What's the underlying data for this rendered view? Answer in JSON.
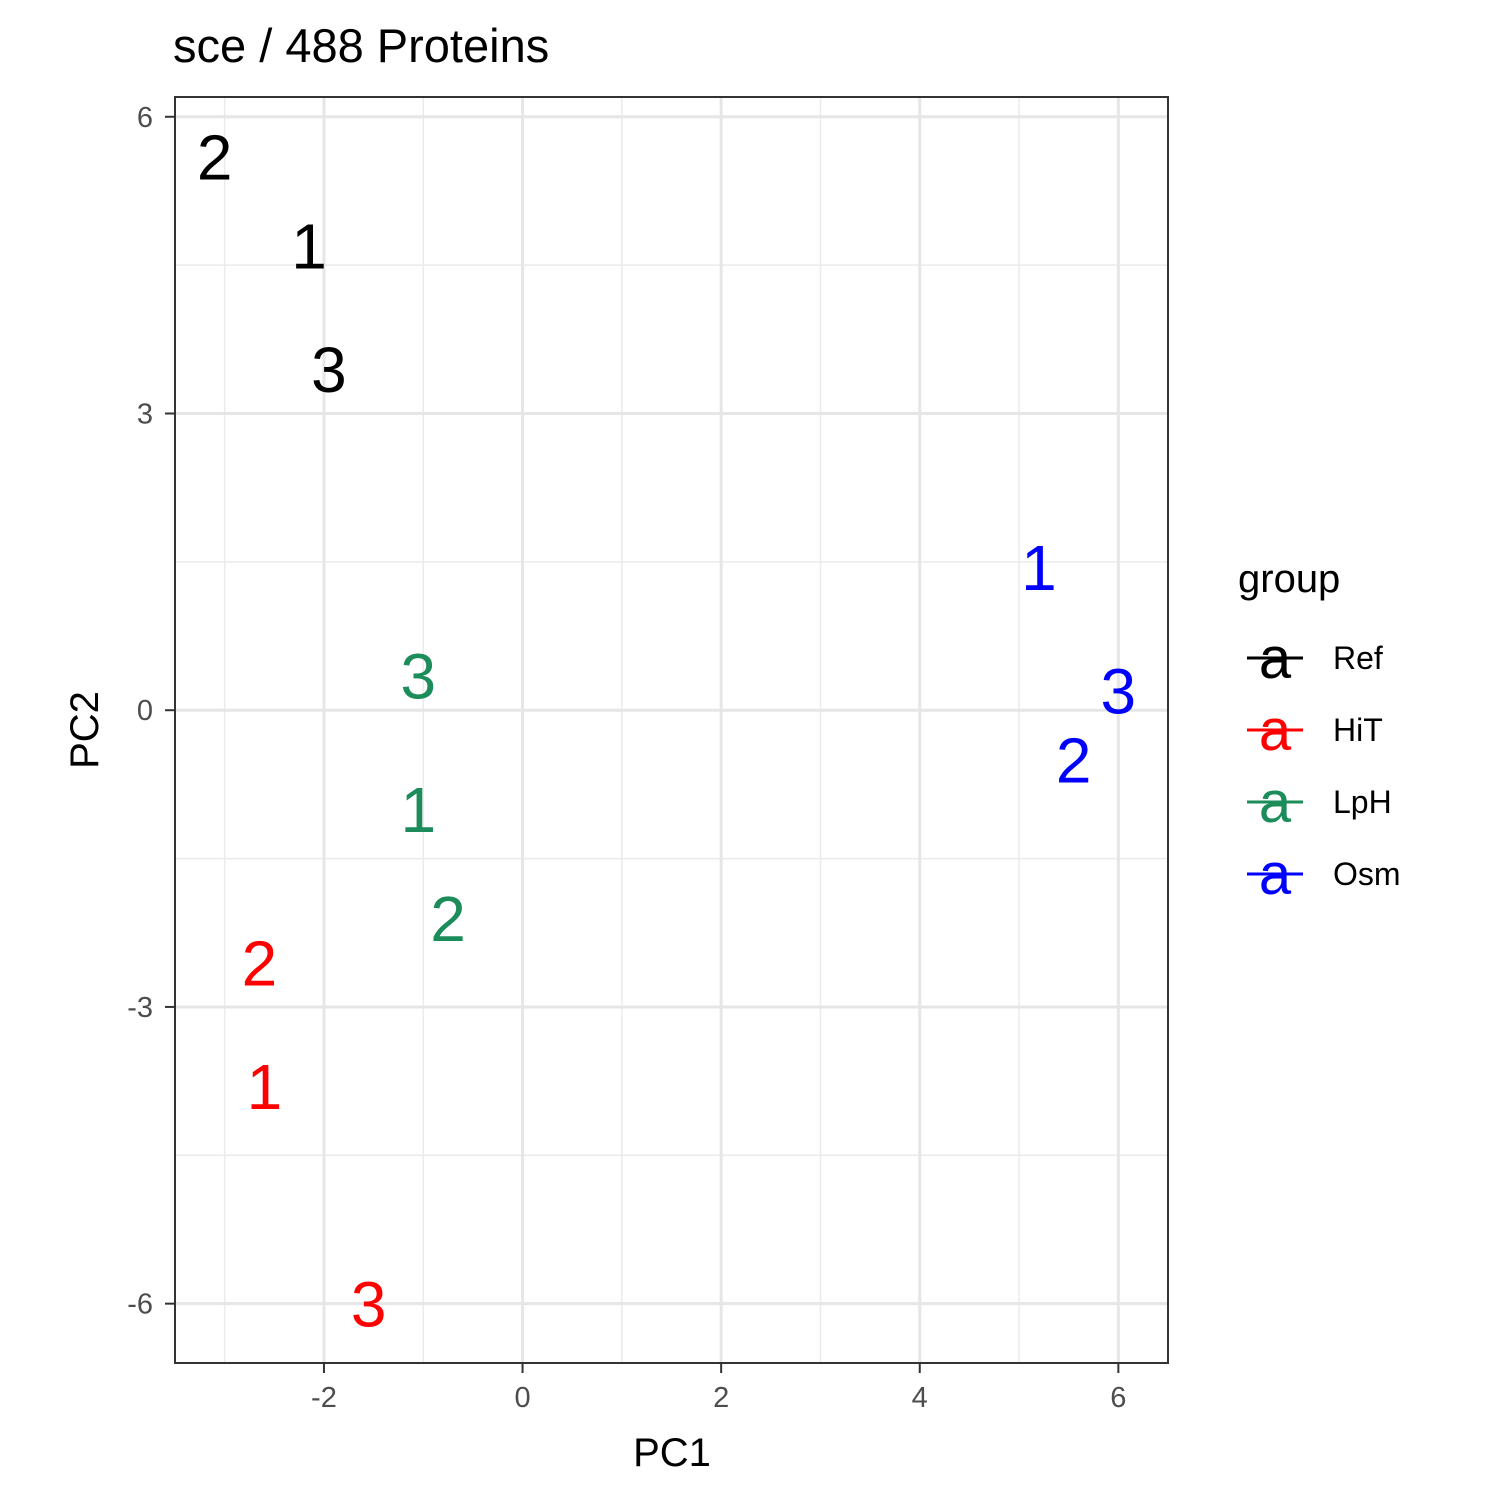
{
  "chart_data": {
    "type": "scatter",
    "title": "sce /  488  Proteins",
    "xlabel": "PC1",
    "ylabel": "PC2",
    "xlim": [
      -3.5,
      6.5
    ],
    "ylim": [
      -6.6,
      6.2
    ],
    "x_ticks": [
      -2,
      0,
      2,
      4,
      6
    ],
    "y_ticks": [
      -6,
      -3,
      0,
      3,
      6
    ],
    "x_tick_labels": [
      "-2",
      "0",
      "2",
      "4",
      "6"
    ],
    "y_tick_labels": [
      "-6",
      "-3",
      "0",
      "3",
      "6"
    ],
    "grid": true,
    "legend": {
      "title": "group",
      "placement": "right",
      "key_glyph": "a",
      "entries": [
        {
          "name": "Ref",
          "color": "#000000"
        },
        {
          "name": "HiT",
          "color": "#ff0000"
        },
        {
          "name": "LpH",
          "color": "#1b8c5a"
        },
        {
          "name": "Osm",
          "color": "#0000ff"
        }
      ]
    },
    "series": [
      {
        "name": "Ref",
        "color": "#000000",
        "points": [
          {
            "label": "2",
            "x": -3.1,
            "y": 5.6
          },
          {
            "label": "1",
            "x": -2.15,
            "y": 4.7
          },
          {
            "label": "3",
            "x": -1.95,
            "y": 3.45
          }
        ]
      },
      {
        "name": "HiT",
        "color": "#ff0000",
        "points": [
          {
            "label": "2",
            "x": -2.65,
            "y": -2.55
          },
          {
            "label": "1",
            "x": -2.6,
            "y": -3.8
          },
          {
            "label": "3",
            "x": -1.55,
            "y": -6.0
          }
        ]
      },
      {
        "name": "LpH",
        "color": "#1b8c5a",
        "points": [
          {
            "label": "3",
            "x": -1.05,
            "y": 0.35
          },
          {
            "label": "1",
            "x": -1.05,
            "y": -1.0
          },
          {
            "label": "2",
            "x": -0.75,
            "y": -2.1
          }
        ]
      },
      {
        "name": "Osm",
        "color": "#0000ff",
        "points": [
          {
            "label": "1",
            "x": 5.2,
            "y": 1.45
          },
          {
            "label": "3",
            "x": 6.0,
            "y": 0.2
          },
          {
            "label": "2",
            "x": 5.55,
            "y": -0.5
          }
        ]
      }
    ]
  }
}
